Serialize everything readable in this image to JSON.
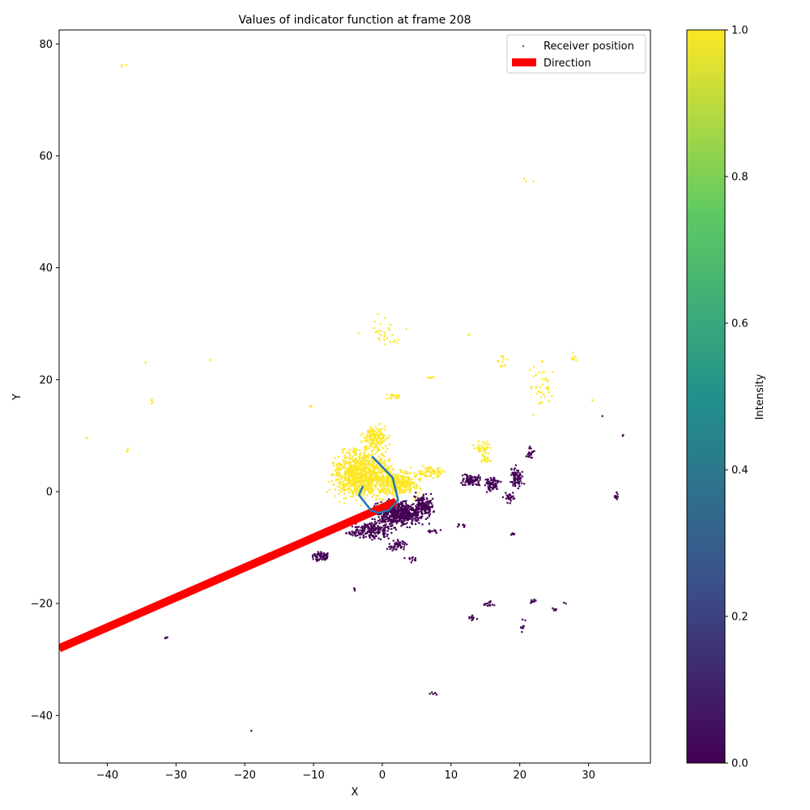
{
  "chart_data": {
    "type": "scatter",
    "title": "Values of indicator function at frame 208",
    "xlabel": "X",
    "ylabel": "Y",
    "xlim": [
      -47,
      39
    ],
    "ylim": [
      -48.5,
      82.5
    ],
    "xticks": [
      -40,
      -30,
      -20,
      -10,
      0,
      10,
      20,
      30
    ],
    "yticks": [
      -40,
      -20,
      0,
      20,
      40,
      60,
      80
    ],
    "grid": false,
    "legend": {
      "placement": "top-right",
      "entries": [
        "Receiver position",
        "Direction"
      ]
    },
    "colorbar": {
      "label": "Intensity",
      "range": [
        0.0,
        1.0
      ],
      "ticks": [
        "0.0",
        "0.2",
        "0.4",
        "0.6",
        "0.8",
        "1.0"
      ],
      "colormap": [
        "#440154",
        "#3b528b",
        "#21918c",
        "#5ec962",
        "#fde725"
      ]
    },
    "colors": {
      "indicator_one": "#fde725",
      "indicator_zero": "#440154",
      "receiver": "#1f77b4",
      "direction": "#ff0000"
    },
    "series": [
      {
        "name": "Receiver position",
        "kind": "line",
        "points": [
          [
            -1.5,
            6.3
          ],
          [
            1.5,
            2.5
          ],
          [
            2.3,
            -1.5
          ],
          [
            1.0,
            -3.3
          ],
          [
            -0.5,
            -3.8
          ],
          [
            -1.6,
            -3.4
          ],
          [
            -3.4,
            -0.6
          ],
          [
            -2.8,
            1.0
          ]
        ]
      },
      {
        "name": "Direction",
        "kind": "line",
        "points": [
          [
            -47.0,
            -28.0
          ],
          [
            2.0,
            -1.8
          ]
        ]
      }
    ],
    "clusters": [
      {
        "value": 1,
        "cx": -3.0,
        "cy": 3.0,
        "rx": 5.5,
        "ry": 5.5,
        "n": 950
      },
      {
        "value": 1,
        "cx": 2.5,
        "cy": 1.5,
        "rx": 3.5,
        "ry": 3.0,
        "n": 320
      },
      {
        "value": 1,
        "cx": -1.0,
        "cy": 9.5,
        "rx": 2.5,
        "ry": 3.0,
        "n": 160
      },
      {
        "value": 1,
        "cx": 7.5,
        "cy": 3.5,
        "rx": 3.0,
        "ry": 1.2,
        "n": 70
      },
      {
        "value": 1,
        "cx": 14.5,
        "cy": 8.0,
        "rx": 1.5,
        "ry": 2.0,
        "n": 35
      },
      {
        "value": 1,
        "cx": 15.0,
        "cy": 6.0,
        "rx": 1.0,
        "ry": 1.0,
        "n": 20
      },
      {
        "value": 1,
        "cx": 23.0,
        "cy": 19.0,
        "rx": 3.0,
        "ry": 6.0,
        "n": 40
      },
      {
        "value": 1,
        "cx": 0.0,
        "cy": 28.0,
        "rx": 3.5,
        "ry": 4.0,
        "n": 30
      },
      {
        "value": 1,
        "cx": 1.5,
        "cy": 17.0,
        "rx": 1.5,
        "ry": 0.8,
        "n": 20
      },
      {
        "value": 1,
        "cx": 17.5,
        "cy": 23.0,
        "rx": 1.0,
        "ry": 1.5,
        "n": 12
      },
      {
        "value": 1,
        "cx": 28.0,
        "cy": 24.0,
        "rx": 1.0,
        "ry": 1.0,
        "n": 8
      },
      {
        "value": 1,
        "cx": 7.0,
        "cy": 20.5,
        "rx": 1.0,
        "ry": 0.5,
        "n": 6
      },
      {
        "value": 1,
        "cx": 21.0,
        "cy": 55.7,
        "rx": 1.0,
        "ry": 0.5,
        "n": 3
      },
      {
        "value": 1,
        "cx": -37.5,
        "cy": 76.0,
        "rx": 0.8,
        "ry": 0.4,
        "n": 3
      },
      {
        "value": 1,
        "cx": -33.5,
        "cy": 16.0,
        "rx": 0.4,
        "ry": 1.0,
        "n": 4
      },
      {
        "value": 1,
        "cx": -37.0,
        "cy": 7.5,
        "rx": 0.5,
        "ry": 0.5,
        "n": 4
      },
      {
        "value": 1,
        "cx": -43.0,
        "cy": 9.5,
        "rx": 0.3,
        "ry": 0.3,
        "n": 2
      },
      {
        "value": 1,
        "cx": -34.5,
        "cy": 23.0,
        "rx": 0.3,
        "ry": 0.3,
        "n": 2
      },
      {
        "value": 1,
        "cx": -25.0,
        "cy": 23.5,
        "rx": 0.3,
        "ry": 0.3,
        "n": 2
      },
      {
        "value": 1,
        "cx": -10.5,
        "cy": 15.3,
        "rx": 0.5,
        "ry": 0.3,
        "n": 3
      },
      {
        "value": 1,
        "cx": 12.5,
        "cy": 28.0,
        "rx": 0.3,
        "ry": 0.3,
        "n": 2
      },
      {
        "value": 1,
        "cx": 30.5,
        "cy": 16.3,
        "rx": 0.3,
        "ry": 0.3,
        "n": 2
      },
      {
        "value": 0,
        "cx": 2.5,
        "cy": -4.0,
        "rx": 4.5,
        "ry": 2.8,
        "n": 520
      },
      {
        "value": 0,
        "cx": 6.0,
        "cy": -2.5,
        "rx": 2.0,
        "ry": 2.5,
        "n": 160
      },
      {
        "value": 0,
        "cx": -1.5,
        "cy": -7.0,
        "rx": 3.5,
        "ry": 2.0,
        "n": 180
      },
      {
        "value": 0,
        "cx": 2.0,
        "cy": -9.5,
        "rx": 2.0,
        "ry": 1.2,
        "n": 50
      },
      {
        "value": 0,
        "cx": 13.0,
        "cy": 2.0,
        "rx": 2.0,
        "ry": 1.2,
        "n": 90
      },
      {
        "value": 0,
        "cx": 16.0,
        "cy": 1.5,
        "rx": 1.5,
        "ry": 1.8,
        "n": 70
      },
      {
        "value": 0,
        "cx": 19.5,
        "cy": 2.5,
        "rx": 1.2,
        "ry": 2.5,
        "n": 80
      },
      {
        "value": 0,
        "cx": 18.5,
        "cy": -1.0,
        "rx": 1.0,
        "ry": 1.5,
        "n": 25
      },
      {
        "value": 0,
        "cx": 21.5,
        "cy": 7.0,
        "rx": 1.0,
        "ry": 1.5,
        "n": 20
      },
      {
        "value": 0,
        "cx": -9.0,
        "cy": -11.5,
        "rx": 1.5,
        "ry": 1.2,
        "n": 60
      },
      {
        "value": 0,
        "cx": 34.0,
        "cy": -0.8,
        "rx": 0.4,
        "ry": 1.0,
        "n": 12
      },
      {
        "value": 0,
        "cx": 15.5,
        "cy": -20.0,
        "rx": 1.0,
        "ry": 0.6,
        "n": 14
      },
      {
        "value": 0,
        "cx": 13.0,
        "cy": -22.5,
        "rx": 1.0,
        "ry": 0.5,
        "n": 10
      },
      {
        "value": 0,
        "cx": 22.0,
        "cy": -19.5,
        "rx": 0.8,
        "ry": 0.6,
        "n": 10
      },
      {
        "value": 0,
        "cx": 20.5,
        "cy": -24.5,
        "rx": 0.5,
        "ry": 2.0,
        "n": 10
      },
      {
        "value": 0,
        "cx": 25.0,
        "cy": -21.0,
        "rx": 0.6,
        "ry": 0.6,
        "n": 5
      },
      {
        "value": 0,
        "cx": 7.5,
        "cy": -36.0,
        "rx": 1.0,
        "ry": 0.5,
        "n": 6
      },
      {
        "value": 0,
        "cx": -31.5,
        "cy": -26.0,
        "rx": 0.3,
        "ry": 0.6,
        "n": 4
      },
      {
        "value": 0,
        "cx": -19.0,
        "cy": -42.8,
        "rx": 0.2,
        "ry": 0.2,
        "n": 1
      },
      {
        "value": 0,
        "cx": 7.5,
        "cy": -7.0,
        "rx": 1.5,
        "ry": 0.6,
        "n": 12
      },
      {
        "value": 0,
        "cx": 4.5,
        "cy": -12.0,
        "rx": 1.5,
        "ry": 0.8,
        "n": 12
      },
      {
        "value": 0,
        "cx": -4.5,
        "cy": -7.5,
        "rx": 1.5,
        "ry": 0.5,
        "n": 14
      },
      {
        "value": 0,
        "cx": 11.5,
        "cy": -6.0,
        "rx": 1.0,
        "ry": 0.8,
        "n": 8
      },
      {
        "value": 0,
        "cx": 19.0,
        "cy": -7.5,
        "rx": 0.4,
        "ry": 0.6,
        "n": 6
      },
      {
        "value": 0,
        "cx": -4.0,
        "cy": -17.5,
        "rx": 0.4,
        "ry": 0.5,
        "n": 3
      },
      {
        "value": 0,
        "cx": 32.0,
        "cy": 13.5,
        "rx": 0.2,
        "ry": 0.2,
        "n": 1
      },
      {
        "value": 0,
        "cx": 35.0,
        "cy": 10.0,
        "rx": 0.2,
        "ry": 0.3,
        "n": 2
      },
      {
        "value": 0,
        "cx": 26.5,
        "cy": -20.0,
        "rx": 0.3,
        "ry": 0.3,
        "n": 2
      }
    ]
  }
}
